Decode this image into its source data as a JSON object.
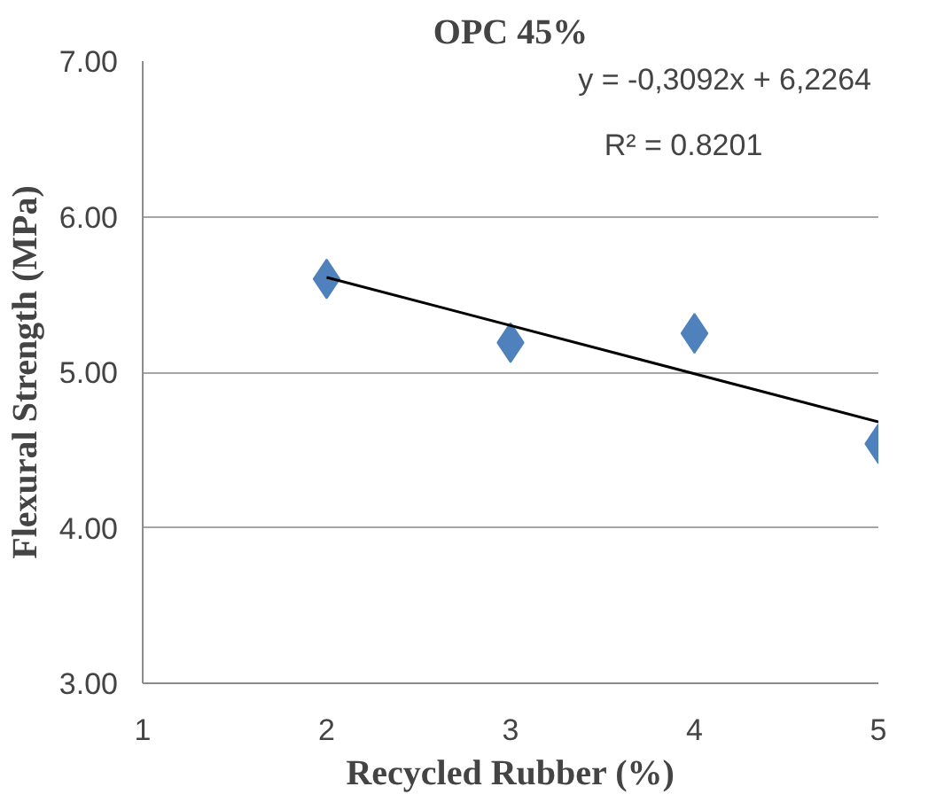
{
  "chart_data": {
    "type": "scatter",
    "title": "OPC 45%",
    "xlabel": "Recycled Rubber (%)",
    "ylabel": "Flexural Strength (MPa)",
    "series": [
      {
        "color": "#4f81bd",
        "marker": "diamond",
        "x": [
          2,
          3,
          4,
          5
        ],
        "values": [
          5.6,
          5.19,
          5.25,
          4.54
        ]
      },
      {
        "type": "line",
        "color": "#000000",
        "marker": "none",
        "x": [
          2,
          5
        ],
        "values": [
          5.61,
          4.68
        ]
      }
    ],
    "annotations": [
      "y = -0,3092x + 6,2264",
      "R² = 0.8201"
    ],
    "xlim": [
      1,
      5
    ],
    "xticks": [
      1,
      2,
      3,
      4,
      5
    ],
    "ylim": [
      3,
      7
    ],
    "yticks": [
      {
        "value": 3,
        "label": "3.00"
      },
      {
        "value": 4,
        "label": "4.00"
      },
      {
        "value": 5,
        "label": "5.00"
      },
      {
        "value": 6,
        "label": "6.00"
      },
      {
        "value": 7,
        "label": "7.00"
      }
    ],
    "grid": "y"
  }
}
